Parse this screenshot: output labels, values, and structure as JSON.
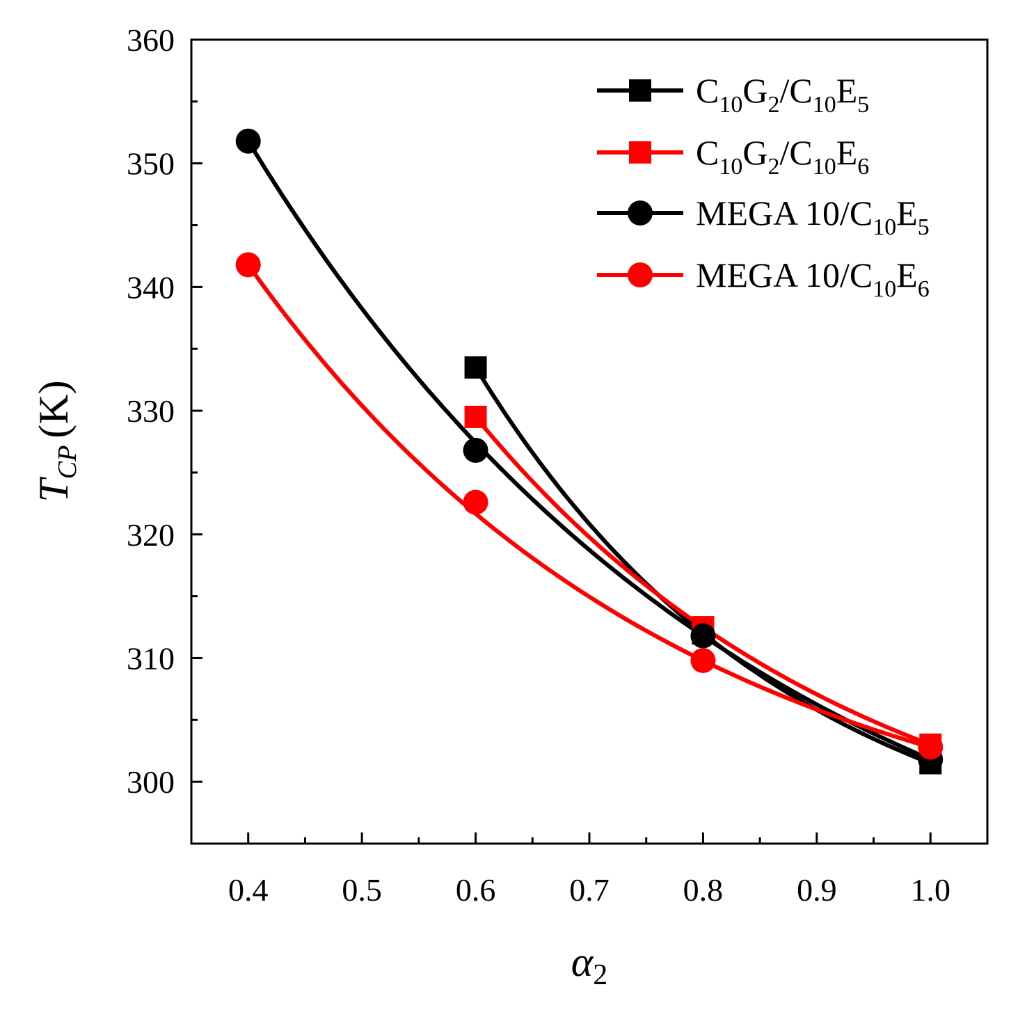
{
  "chart_data": {
    "type": "line",
    "xlabel": {
      "symbol": "α",
      "sub": "2"
    },
    "ylabel": {
      "symbol": "T",
      "sub": "CP",
      "unit": "(K)"
    },
    "xlim": [
      0.35,
      1.05
    ],
    "ylim": [
      295,
      360
    ],
    "xticks": [
      0.4,
      0.5,
      0.6,
      0.7,
      0.8,
      0.9,
      1.0
    ],
    "xtick_labels": [
      "0.4",
      "0.5",
      "0.6",
      "0.7",
      "0.8",
      "0.9",
      "1.0"
    ],
    "yticks": [
      300,
      310,
      320,
      330,
      340,
      350,
      360
    ],
    "ytick_labels": [
      "300",
      "310",
      "320",
      "330",
      "340",
      "350",
      "360"
    ],
    "legend_position": "top-right",
    "series": [
      {
        "name": "C10G2/C10E5",
        "label_parts": [
          {
            "t": "C",
            "s": false
          },
          {
            "t": "10",
            "s": true
          },
          {
            "t": "G",
            "s": false
          },
          {
            "t": "2",
            "s": true
          },
          {
            "t": "/C",
            "s": false
          },
          {
            "t": "10",
            "s": true
          },
          {
            "t": "E",
            "s": false
          },
          {
            "t": "5",
            "s": true
          }
        ],
        "color": "#000000",
        "marker": "square",
        "x": [
          0.6,
          0.8,
          1.0
        ],
        "y": [
          333.5,
          312.0,
          301.5
        ]
      },
      {
        "name": "C10G2/C10E6",
        "label_parts": [
          {
            "t": "C",
            "s": false
          },
          {
            "t": "10",
            "s": true
          },
          {
            "t": "G",
            "s": false
          },
          {
            "t": "2",
            "s": true
          },
          {
            "t": "/C",
            "s": false
          },
          {
            "t": "10",
            "s": true
          },
          {
            "t": "E",
            "s": false
          },
          {
            "t": "6",
            "s": true
          }
        ],
        "color": "#ff0000",
        "marker": "square",
        "x": [
          0.6,
          0.8,
          1.0
        ],
        "y": [
          329.5,
          312.5,
          303.0
        ]
      },
      {
        "name": "MEGA 10/C10E5",
        "label_parts": [
          {
            "t": "MEGA 10/C",
            "s": false
          },
          {
            "t": "10",
            "s": true
          },
          {
            "t": "E",
            "s": false
          },
          {
            "t": "5",
            "s": true
          }
        ],
        "color": "#000000",
        "marker": "circle",
        "x": [
          0.4,
          0.6,
          0.8,
          1.0
        ],
        "y": [
          351.8,
          326.8,
          311.8,
          301.8
        ]
      },
      {
        "name": "MEGA 10/C10E6",
        "label_parts": [
          {
            "t": "MEGA 10/C",
            "s": false
          },
          {
            "t": "10",
            "s": true
          },
          {
            "t": "E",
            "s": false
          },
          {
            "t": "6",
            "s": true
          }
        ],
        "color": "#ff0000",
        "marker": "circle",
        "x": [
          0.4,
          0.6,
          0.8,
          1.0
        ],
        "y": [
          341.8,
          322.6,
          309.8,
          302.8
        ]
      }
    ]
  }
}
